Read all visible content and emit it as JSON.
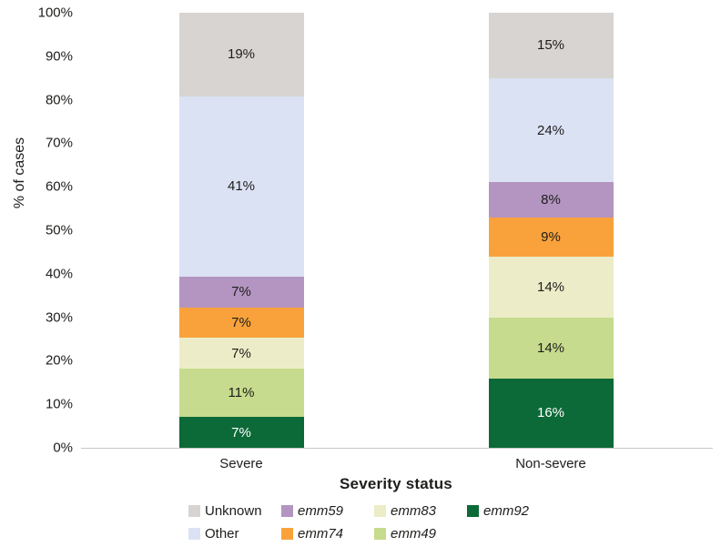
{
  "chart_data": {
    "type": "bar",
    "stacked": true,
    "orientation": "vertical",
    "title": "",
    "xlabel": "Severity status",
    "ylabel": "% of cases",
    "categories": [
      "Severe",
      "Non-severe"
    ],
    "ylim": [
      0,
      100
    ],
    "ytick_labels": [
      "0%",
      "10%",
      "20%",
      "30%",
      "40%",
      "50%",
      "60%",
      "70%",
      "80%",
      "90%",
      "100%"
    ],
    "grid": false,
    "legend_position": "bottom",
    "segment_label_suffix": "%",
    "series": [
      {
        "name": "emm92",
        "italic": true,
        "color": "#0b6a38",
        "label_color": "#ffffff",
        "values": [
          7,
          16
        ]
      },
      {
        "name": "emm49",
        "italic": true,
        "color": "#c6db8d",
        "label_color": "#1d1d1b",
        "values": [
          11,
          14
        ]
      },
      {
        "name": "emm83",
        "italic": true,
        "color": "#ecedc8",
        "label_color": "#1d1d1b",
        "values": [
          7,
          14
        ]
      },
      {
        "name": "emm74",
        "italic": true,
        "color": "#f9a23b",
        "label_color": "#1d1d1b",
        "values": [
          7,
          9
        ]
      },
      {
        "name": "emm59",
        "italic": true,
        "color": "#b495c1",
        "label_color": "#1d1d1b",
        "values": [
          7,
          8
        ]
      },
      {
        "name": "Other",
        "italic": false,
        "color": "#dbe2f4",
        "label_color": "#1d1d1b",
        "values": [
          41,
          24
        ]
      },
      {
        "name": "Unknown",
        "italic": false,
        "color": "#d7d4d1",
        "label_color": "#1d1d1b",
        "values": [
          19,
          15
        ]
      }
    ]
  },
  "legend": {
    "items": [
      {
        "label": "Unknown",
        "color": "#d7d4d1",
        "italic": false
      },
      {
        "label": "emm59",
        "color": "#b495c1",
        "italic": true
      },
      {
        "label": "emm83",
        "color": "#ecedc8",
        "italic": true
      },
      {
        "label": "emm92",
        "color": "#0b6a38",
        "italic": true
      },
      {
        "label": "Other",
        "color": "#dbe2f4",
        "italic": false
      },
      {
        "label": "emm74",
        "color": "#f9a23b",
        "italic": true
      },
      {
        "label": "emm49",
        "color": "#c6db8d",
        "italic": true
      }
    ]
  }
}
